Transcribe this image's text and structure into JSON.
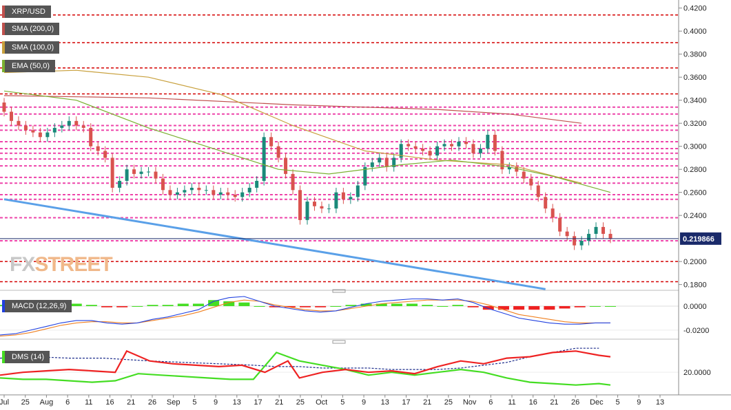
{
  "legends": {
    "main": "XRP/USD",
    "sma200": "SMA (200,0)",
    "sma100": "SMA (100,0)",
    "ema50": "EMA (50,0)",
    "macd": "MACD (12,26,9)",
    "dms": "DMS (14)"
  },
  "watermark": {
    "part1": "FX",
    "part2": "STREET"
  },
  "colors": {
    "sma200": "#c0504d",
    "sma100": "#c8a03c",
    "ema50": "#7ab030",
    "trendline": "#5aa0e8",
    "bull": "#1a8a7a",
    "bear": "#d9534f",
    "support_red": "#d40000",
    "support_pink": "#ee44aa",
    "macd_line": "#2040e0",
    "signal_line": "#f08020",
    "hist_pos": "#44dd22",
    "hist_neg": "#ee2222",
    "dms_plus": "#44dd22",
    "dms_minus": "#ee2222",
    "adx": "#1a2a8a"
  },
  "chart_data": [
    {
      "type": "candlestick",
      "title": "XRP/USD",
      "ylim": [
        0.175,
        0.427
      ],
      "y_ticks": [
        "0.4200",
        "0.4000",
        "0.3800",
        "0.3600",
        "0.3400",
        "0.3200",
        "0.3000",
        "0.2800",
        "0.2600",
        "0.2400",
        "0.2000",
        "0.1800"
      ],
      "x_ticks": [
        "Jul",
        "25",
        "Aug",
        "6",
        "11",
        "16",
        "21",
        "26",
        "Sep",
        "5",
        "9",
        "13",
        "17",
        "21",
        "25",
        "Oct",
        "5",
        "9",
        "13",
        "17",
        "21",
        "25",
        "Nov",
        "6",
        "11",
        "16",
        "21",
        "26",
        "Dec",
        "5",
        "9",
        "13"
      ],
      "last_price": "0.219866",
      "close": [
        0.33,
        0.322,
        0.318,
        0.314,
        0.312,
        0.308,
        0.312,
        0.316,
        0.318,
        0.322,
        0.318,
        0.316,
        0.3,
        0.296,
        0.29,
        0.264,
        0.27,
        0.28,
        0.276,
        0.278,
        0.278,
        0.272,
        0.262,
        0.258,
        0.26,
        0.262,
        0.264,
        0.262,
        0.262,
        0.258,
        0.26,
        0.258,
        0.256,
        0.26,
        0.264,
        0.27,
        0.308,
        0.3,
        0.29,
        0.276,
        0.262,
        0.236,
        0.252,
        0.248,
        0.246,
        0.246,
        0.26,
        0.254,
        0.256,
        0.266,
        0.282,
        0.286,
        0.29,
        0.282,
        0.29,
        0.302,
        0.3,
        0.298,
        0.296,
        0.292,
        0.3,
        0.302,
        0.3,
        0.304,
        0.302,
        0.294,
        0.298,
        0.31,
        0.296,
        0.28,
        0.282,
        0.278,
        0.272,
        0.266,
        0.256,
        0.246,
        0.238,
        0.226,
        0.222,
        0.214,
        0.218,
        0.224,
        0.23,
        0.224,
        0.22
      ],
      "support_levels_red": [
        0.414,
        0.39,
        0.368,
        0.3455,
        0.2,
        0.1825
      ],
      "support_levels_pink": [
        0.334,
        0.328,
        0.318,
        0.314,
        0.304,
        0.298,
        0.294,
        0.289,
        0.283,
        0.273,
        0.268,
        0.258,
        0.254,
        0.238,
        0.218
      ],
      "sma200": [
        [
          0,
          0.344
        ],
        [
          20,
          0.342
        ],
        [
          40,
          0.336
        ],
        [
          60,
          0.332
        ],
        [
          70,
          0.328
        ],
        [
          80,
          0.32
        ]
      ],
      "sma100": [
        [
          0,
          0.364
        ],
        [
          10,
          0.366
        ],
        [
          20,
          0.36
        ],
        [
          30,
          0.345
        ],
        [
          40,
          0.318
        ],
        [
          50,
          0.296
        ],
        [
          60,
          0.288
        ],
        [
          70,
          0.284
        ],
        [
          80,
          0.268
        ]
      ],
      "ema50": [
        [
          0,
          0.348
        ],
        [
          10,
          0.34
        ],
        [
          20,
          0.316
        ],
        [
          30,
          0.296
        ],
        [
          38,
          0.28
        ],
        [
          45,
          0.276
        ],
        [
          55,
          0.284
        ],
        [
          62,
          0.288
        ],
        [
          70,
          0.282
        ],
        [
          76,
          0.274
        ],
        [
          84,
          0.26
        ]
      ],
      "trendline": [
        [
          0,
          0.254
        ],
        [
          75,
          0.176
        ]
      ]
    },
    {
      "type": "line",
      "title": "MACD (12,26,9)",
      "ylim": [
        -0.0275,
        0.012
      ],
      "y_ticks": [
        "0.0000",
        "-0.0200"
      ],
      "macd": [
        -0.024,
        -0.023,
        -0.02,
        -0.017,
        -0.014,
        -0.012,
        -0.012,
        -0.014,
        -0.015,
        -0.014,
        -0.011,
        -0.009,
        -0.006,
        -0.003,
        0.004,
        0.007,
        0.008,
        0.004,
        0.0,
        -0.002,
        -0.004,
        -0.005,
        -0.004,
        -0.001,
        0.002,
        0.004,
        0.005,
        0.006,
        0.006,
        0.005,
        0.006,
        0.003,
        -0.002,
        -0.006,
        -0.01,
        -0.012,
        -0.014,
        -0.015,
        -0.015,
        -0.014,
        -0.014
      ],
      "signal": [
        -0.025,
        -0.024,
        -0.022,
        -0.019,
        -0.016,
        -0.014,
        -0.013,
        -0.013,
        -0.014,
        -0.014,
        -0.012,
        -0.01,
        -0.008,
        -0.005,
        -0.001,
        0.003,
        0.005,
        0.004,
        0.001,
        -0.001,
        -0.003,
        -0.004,
        -0.004,
        -0.002,
        0.0,
        0.002,
        0.003,
        0.004,
        0.005,
        0.005,
        0.005,
        0.004,
        0.001,
        -0.003,
        -0.007,
        -0.009,
        -0.011,
        -0.013,
        -0.014,
        -0.014,
        -0.014
      ]
    },
    {
      "type": "line",
      "title": "DMS (14)",
      "ylim": [
        5,
        41
      ],
      "y_ticks": [
        "20.0000"
      ],
      "adx": [
        [
          0,
          30
        ],
        [
          3,
          31
        ],
        [
          6,
          30
        ],
        [
          9,
          30
        ],
        [
          11,
          29
        ],
        [
          13,
          28
        ],
        [
          16,
          27
        ],
        [
          19,
          26
        ],
        [
          22,
          25
        ],
        [
          24,
          24
        ],
        [
          26,
          24
        ],
        [
          28,
          23
        ],
        [
          30,
          23
        ],
        [
          32,
          23
        ],
        [
          34,
          22
        ],
        [
          36,
          22
        ],
        [
          38,
          22
        ],
        [
          40,
          23
        ],
        [
          42,
          25
        ],
        [
          44,
          27
        ],
        [
          46,
          31
        ],
        [
          48,
          34
        ],
        [
          50,
          37
        ],
        [
          52,
          37
        ]
      ],
      "di_plus": [
        [
          0,
          16
        ],
        [
          2,
          15
        ],
        [
          4,
          15
        ],
        [
          6,
          14
        ],
        [
          8,
          13
        ],
        [
          10,
          14
        ],
        [
          12,
          19
        ],
        [
          14,
          18
        ],
        [
          16,
          17
        ],
        [
          18,
          16
        ],
        [
          20,
          15
        ],
        [
          22,
          15
        ],
        [
          24,
          34
        ],
        [
          26,
          28
        ],
        [
          28,
          25
        ],
        [
          30,
          22
        ],
        [
          32,
          18
        ],
        [
          34,
          20
        ],
        [
          36,
          18
        ],
        [
          38,
          20
        ],
        [
          40,
          22
        ],
        [
          42,
          20
        ],
        [
          44,
          16
        ],
        [
          46,
          13
        ],
        [
          48,
          12
        ],
        [
          50,
          11
        ],
        [
          52,
          12
        ],
        [
          53,
          11
        ]
      ],
      "di_minus": [
        [
          0,
          18
        ],
        [
          2,
          20
        ],
        [
          4,
          21
        ],
        [
          6,
          22
        ],
        [
          8,
          21
        ],
        [
          10,
          20
        ],
        [
          11,
          35
        ],
        [
          13,
          28
        ],
        [
          15,
          26
        ],
        [
          17,
          25
        ],
        [
          19,
          24
        ],
        [
          21,
          25
        ],
        [
          23,
          20
        ],
        [
          25,
          28
        ],
        [
          26,
          16
        ],
        [
          28,
          20
        ],
        [
          30,
          22
        ],
        [
          32,
          20
        ],
        [
          34,
          21
        ],
        [
          36,
          19
        ],
        [
          38,
          24
        ],
        [
          40,
          28
        ],
        [
          42,
          26
        ],
        [
          44,
          30
        ],
        [
          46,
          31
        ],
        [
          48,
          34
        ],
        [
          50,
          35
        ],
        [
          52,
          32
        ],
        [
          53,
          31
        ]
      ]
    }
  ]
}
